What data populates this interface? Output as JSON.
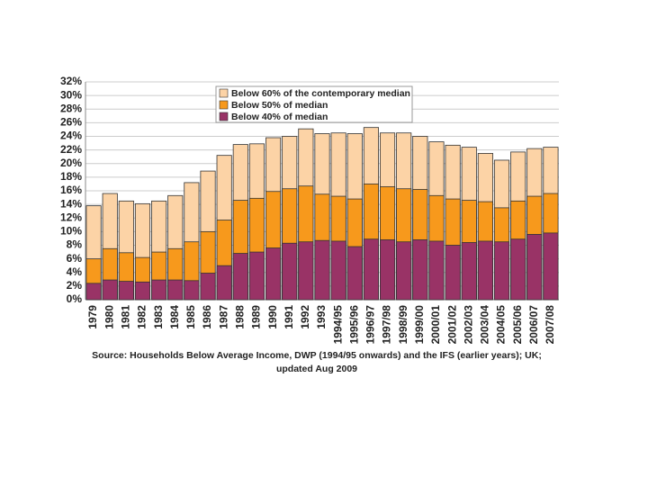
{
  "chart_data": {
    "type": "bar",
    "overlap": true,
    "categories": [
      "1979",
      "1980",
      "1981",
      "1982",
      "1983",
      "1984",
      "1985",
      "1986",
      "1987",
      "1988",
      "1989",
      "1990",
      "1991",
      "1992",
      "1993",
      "1994/95",
      "1995/96",
      "1996/97",
      "1997/98",
      "1998/99",
      "1999/00",
      "2000/01",
      "2001/02",
      "2002/03",
      "2003/04",
      "2004/05",
      "2005/06",
      "2006/07",
      "2007/08"
    ],
    "series": [
      {
        "name": "Below 60% of the contemporary median",
        "color": "#fcd3a6",
        "values": [
          13.8,
          15.6,
          14.5,
          14.1,
          14.5,
          15.3,
          17.2,
          18.9,
          21.2,
          22.8,
          22.9,
          23.8,
          24.0,
          25.1,
          24.4,
          24.5,
          24.4,
          25.3,
          24.5,
          24.5,
          24.0,
          23.2,
          22.7,
          22.4,
          21.5,
          20.5,
          21.7,
          22.2,
          22.4
        ]
      },
      {
        "name": "Below 50% of median",
        "color": "#f7991c",
        "values": [
          6.0,
          7.5,
          6.9,
          6.2,
          7.0,
          7.5,
          8.5,
          10.0,
          11.7,
          14.6,
          14.9,
          15.9,
          16.3,
          16.7,
          15.5,
          15.2,
          14.8,
          17.0,
          16.6,
          16.3,
          16.2,
          15.3,
          14.8,
          14.6,
          14.4,
          13.5,
          14.5,
          15.2,
          15.6
        ]
      },
      {
        "name": "Below 40% of median",
        "color": "#993366",
        "values": [
          2.4,
          2.9,
          2.7,
          2.6,
          2.9,
          2.9,
          2.8,
          3.9,
          5.0,
          6.8,
          7.0,
          7.6,
          8.3,
          8.5,
          8.7,
          8.6,
          7.8,
          8.9,
          8.8,
          8.5,
          8.8,
          8.6,
          8.0,
          8.4,
          8.6,
          8.5,
          8.9,
          9.6,
          9.8
        ]
      }
    ],
    "ylim": [
      0,
      32
    ],
    "yticks": [
      {
        "value": 0,
        "label": "0%"
      },
      {
        "value": 2,
        "label": "2%"
      },
      {
        "value": 4,
        "label": "4%"
      },
      {
        "value": 6,
        "label": "6%"
      },
      {
        "value": 8,
        "label": "8%"
      },
      {
        "value": 10,
        "label": "10%"
      },
      {
        "value": 12,
        "label": "12%"
      },
      {
        "value": 14,
        "label": "14%"
      },
      {
        "value": 16,
        "label": "16%"
      },
      {
        "value": 18,
        "label": "18%"
      },
      {
        "value": 20,
        "label": "20%"
      },
      {
        "value": 22,
        "label": "22%"
      },
      {
        "value": 24,
        "label": "24%"
      },
      {
        "value": 26,
        "label": "26%"
      },
      {
        "value": 28,
        "label": "28%"
      },
      {
        "value": 30,
        "label": "30%"
      },
      {
        "value": 32,
        "label": "32%"
      }
    ],
    "grid": true,
    "legend": "top",
    "source": [
      "Source: Households Below Average Income, DWP (1994/95 onwards) and the IFS (earlier years); UK;",
      "updated Aug 2009"
    ]
  }
}
